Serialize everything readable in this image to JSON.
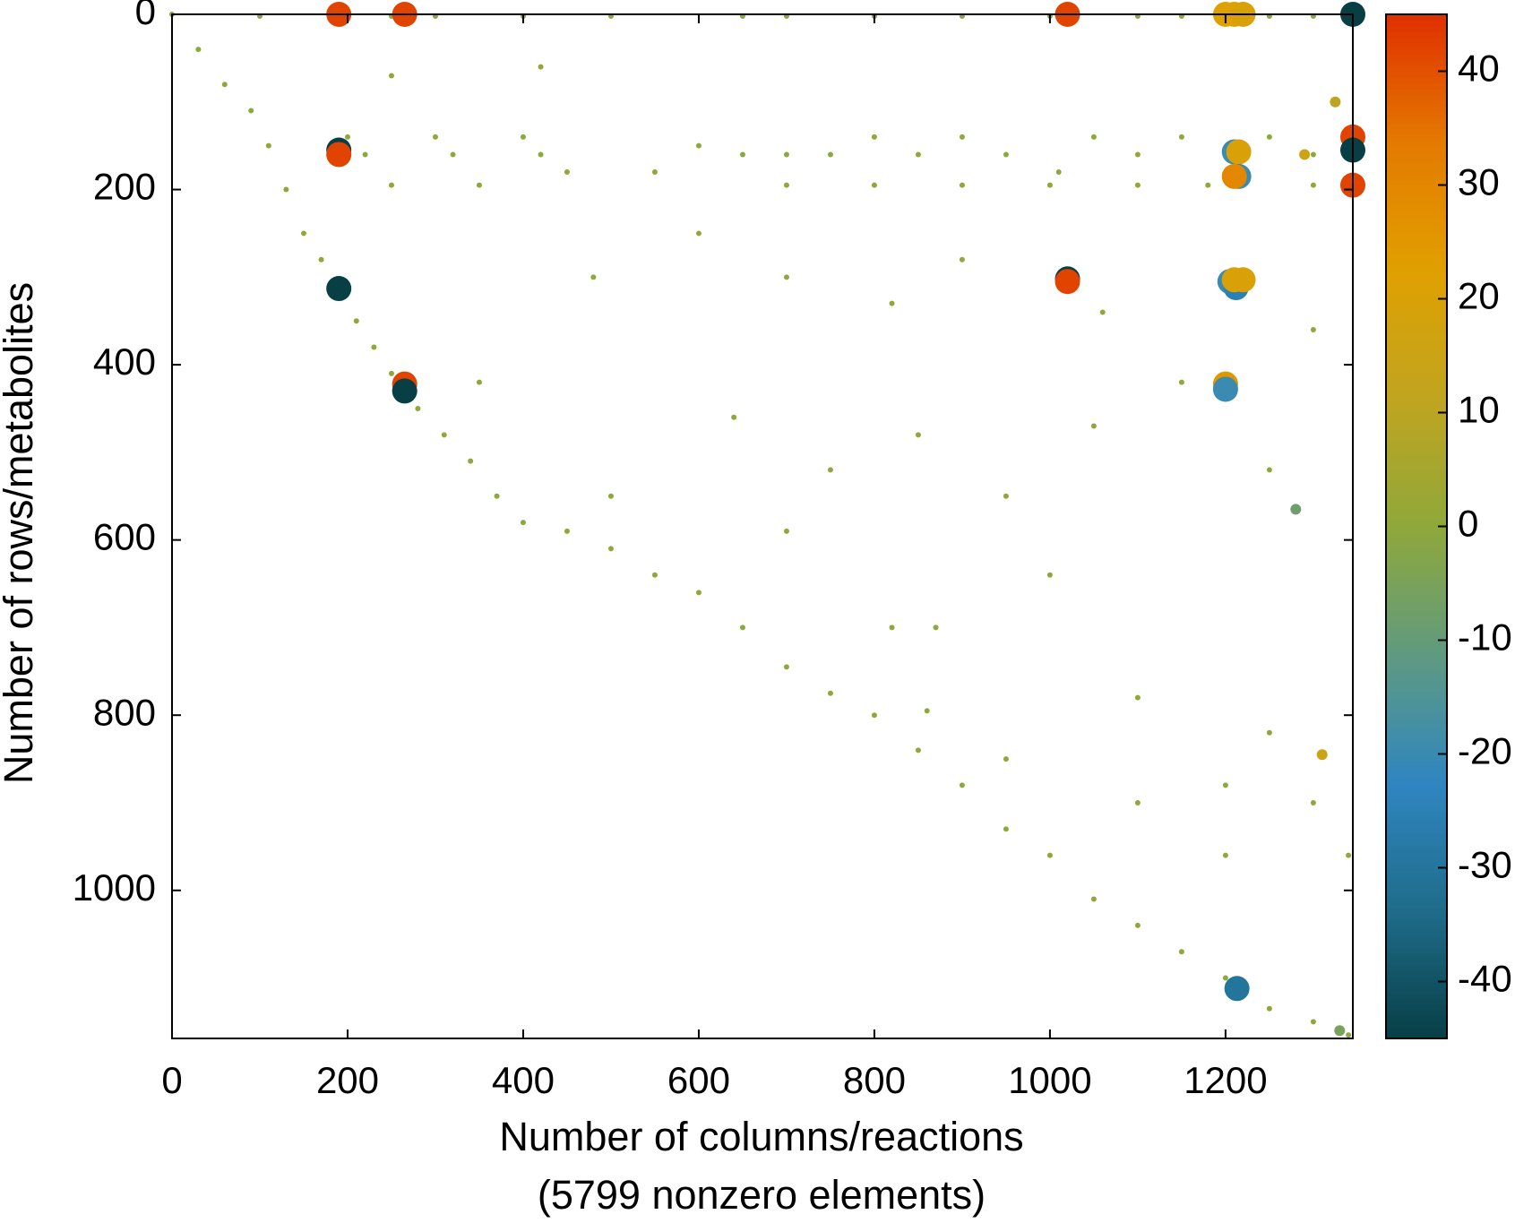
{
  "chart_data": {
    "type": "scatter",
    "xlabel": [
      "Number of columns/reactions",
      "(5799 nonzero elements)"
    ],
    "ylabel": "Number of rows/metabolites",
    "xlim": [
      0,
      1345
    ],
    "ylim": [
      1169,
      0
    ],
    "xticks": [
      0,
      200,
      400,
      600,
      800,
      1000,
      1200
    ],
    "yticks": [
      0,
      200,
      400,
      600,
      800,
      1000
    ],
    "clim": [
      -45,
      45
    ],
    "cticks": [
      -40,
      -30,
      -20,
      -10,
      0,
      10,
      20,
      30,
      40
    ],
    "colormap": [
      "#073f45",
      "#1f6c8a",
      "#2f86c0",
      "#5f9a80",
      "#8fa83a",
      "#c0a520",
      "#e0a000",
      "#e47a00",
      "#e03000"
    ],
    "x": [
      0,
      30,
      60,
      90,
      110,
      130,
      150,
      170,
      190,
      210,
      230,
      250,
      280,
      310,
      340,
      370,
      400,
      450,
      500,
      550,
      600,
      650,
      700,
      750,
      800,
      850,
      900,
      950,
      1000,
      1050,
      1100,
      1150,
      1200,
      1250,
      1300,
      1340,
      100,
      250,
      300,
      400,
      500,
      650,
      700,
      800,
      900,
      1000,
      1100,
      1150,
      1250,
      1300,
      200,
      300,
      400,
      800,
      900,
      1050,
      1150,
      1250,
      220,
      320,
      420,
      650,
      700,
      750,
      850,
      950,
      1100,
      1200,
      1300,
      250,
      350,
      700,
      800,
      900,
      1000,
      1100,
      1180,
      1300,
      250,
      420,
      550,
      480,
      600,
      700,
      820,
      900,
      1060,
      1150,
      1300,
      640,
      750,
      850,
      950,
      1050,
      1250,
      700,
      820,
      870,
      860,
      1000,
      1100,
      1200,
      1250,
      1300,
      1340,
      1200,
      1100,
      950,
      600,
      1010,
      500,
      350,
      450,
      190,
      265,
      1020,
      1345,
      190,
      190,
      1345,
      1345,
      1345,
      1210,
      1215,
      1215,
      1210,
      190,
      1020,
      1020,
      1205,
      1212,
      1210,
      1220,
      265,
      265,
      1200,
      1200,
      1213,
      1200,
      1210,
      1220,
      1290,
      1310,
      1280,
      1330,
      1325
    ],
    "y": [
      0,
      40,
      80,
      110,
      150,
      200,
      250,
      280,
      310,
      350,
      380,
      410,
      450,
      480,
      510,
      550,
      580,
      590,
      610,
      640,
      660,
      700,
      745,
      775,
      800,
      840,
      880,
      930,
      960,
      1010,
      1040,
      1070,
      1100,
      1135,
      1150,
      1165,
      2,
      2,
      2,
      2,
      2,
      2,
      2,
      2,
      2,
      2,
      2,
      2,
      2,
      2,
      140,
      140,
      140,
      140,
      140,
      140,
      140,
      140,
      160,
      160,
      160,
      160,
      160,
      160,
      160,
      160,
      160,
      160,
      160,
      195,
      195,
      195,
      195,
      195,
      195,
      195,
      195,
      195,
      70,
      60,
      180,
      300,
      250,
      300,
      330,
      280,
      340,
      420,
      360,
      460,
      520,
      480,
      550,
      470,
      520,
      590,
      700,
      700,
      795,
      640,
      780,
      880,
      820,
      900,
      960,
      960,
      900,
      850,
      150,
      180,
      550,
      420,
      180,
      0,
      0,
      0,
      0,
      155,
      160,
      140,
      155,
      195,
      157,
      157,
      185,
      185,
      313,
      302,
      305,
      305,
      312,
      303,
      303,
      422,
      430,
      422,
      428,
      1112,
      0,
      0,
      0,
      160,
      845,
      565,
      1160,
      100
    ],
    "c": [
      0,
      0,
      0,
      0,
      0,
      0,
      0,
      0,
      0,
      0,
      0,
      0,
      0,
      0,
      0,
      0,
      0,
      0,
      0,
      0,
      0,
      0,
      0,
      0,
      0,
      0,
      0,
      0,
      0,
      0,
      0,
      0,
      0,
      0,
      0,
      0,
      0,
      0,
      0,
      0,
      0,
      0,
      0,
      0,
      0,
      0,
      0,
      0,
      0,
      0,
      0,
      0,
      0,
      0,
      0,
      0,
      0,
      0,
      0,
      0,
      0,
      0,
      0,
      0,
      0,
      0,
      0,
      0,
      0,
      0,
      0,
      0,
      0,
      0,
      0,
      0,
      0,
      0,
      0,
      0,
      0,
      0,
      0,
      0,
      0,
      0,
      0,
      0,
      0,
      0,
      0,
      0,
      0,
      0,
      0,
      0,
      0,
      0,
      0,
      0,
      0,
      0,
      0,
      0,
      0,
      0,
      0,
      0,
      0,
      0,
      0,
      0,
      0,
      42,
      42,
      42,
      -45,
      -45,
      42,
      42,
      -45,
      42,
      -20,
      20,
      -20,
      30,
      -45,
      -45,
      42,
      -20,
      -25,
      20,
      20,
      42,
      -45,
      25,
      -20,
      -30,
      22,
      22,
      20,
      15,
      15,
      -8,
      -5,
      10
    ]
  }
}
